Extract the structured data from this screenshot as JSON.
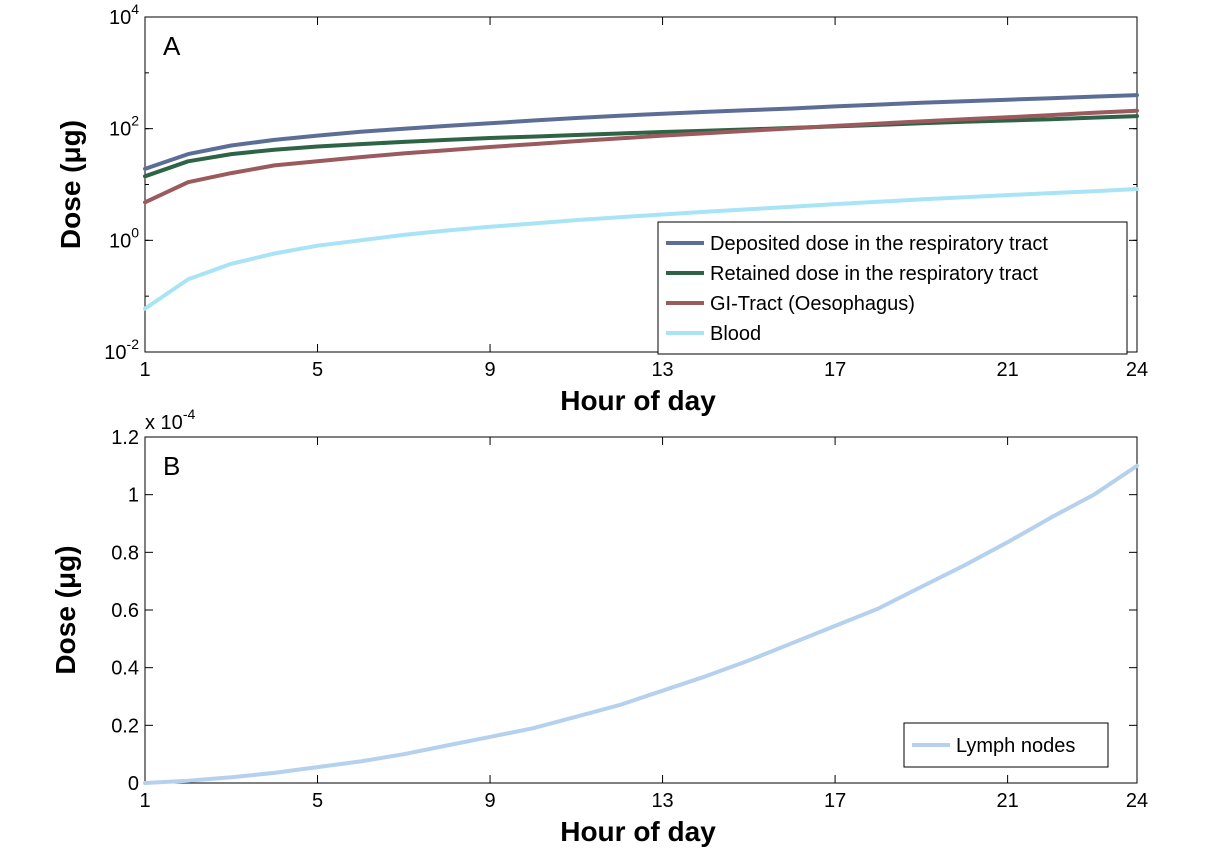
{
  "chart_data": [
    {
      "type": "line",
      "panel_label": "A",
      "xlabel": "Hour of day",
      "ylabel": "Dose (μg)",
      "yscale": "log",
      "xlim": [
        1,
        24
      ],
      "ylim": [
        0.01,
        10000
      ],
      "x_ticks": [
        1,
        5,
        9,
        13,
        17,
        21,
        24
      ],
      "y_ticks": [
        {
          "value": 0.01,
          "base": "10",
          "exp": "-2"
        },
        {
          "value": 1,
          "base": "10",
          "exp": "0"
        },
        {
          "value": 100,
          "base": "10",
          "exp": "2"
        },
        {
          "value": 10000,
          "base": "10",
          "exp": "4"
        }
      ],
      "grid": false,
      "legend_position": "bottom-right",
      "x": [
        1,
        2,
        3,
        4,
        5,
        6,
        7,
        8,
        9,
        10,
        11,
        12,
        13,
        14,
        15,
        16,
        17,
        18,
        19,
        20,
        21,
        22,
        23,
        24
      ],
      "series": [
        {
          "name": "Deposited dose in the respiratory tract",
          "color": "#5d6e96",
          "values": [
            19,
            35,
            50,
            63,
            75,
            88,
            100,
            112,
            125,
            140,
            155,
            170,
            185,
            200,
            215,
            230,
            250,
            270,
            290,
            310,
            330,
            350,
            375,
            400
          ]
        },
        {
          "name": "Retained dose in the respiratory tract",
          "color": "#2f6346",
          "values": [
            14,
            26,
            35,
            42,
            48,
            53,
            58,
            63,
            68,
            72,
            77,
            82,
            87,
            92,
            97,
            103,
            110,
            117,
            125,
            133,
            140,
            148,
            158,
            168
          ]
        },
        {
          "name": "GI-Tract (Oesophagus)",
          "color": "#9a5a5e",
          "values": [
            4.8,
            11,
            16,
            22,
            26,
            31,
            36,
            41,
            47,
            53,
            60,
            67,
            75,
            83,
            92,
            101,
            112,
            123,
            135,
            147,
            160,
            175,
            192,
            210
          ]
        },
        {
          "name": "Blood",
          "color": "#a8e4f5",
          "values": [
            0.06,
            0.2,
            0.38,
            0.58,
            0.8,
            1.0,
            1.25,
            1.5,
            1.75,
            2.0,
            2.3,
            2.6,
            2.9,
            3.25,
            3.6,
            4.0,
            4.45,
            4.9,
            5.4,
            5.9,
            6.45,
            7.0,
            7.6,
            8.3
          ]
        }
      ]
    },
    {
      "type": "line",
      "panel_label": "B",
      "xlabel": "Hour of day",
      "ylabel": "Dose (μg)",
      "multiplier_label": "x 10",
      "multiplier_exp": "-4",
      "xlim": [
        1,
        24
      ],
      "ylim": [
        0,
        1.2
      ],
      "x_ticks": [
        1,
        5,
        9,
        13,
        17,
        21,
        24
      ],
      "y_ticks": [
        "0",
        "0.2",
        "0.4",
        "0.6",
        "0.8",
        "1",
        "1.2"
      ],
      "grid": false,
      "legend_position": "bottom-right",
      "x": [
        1,
        2,
        3,
        4,
        5,
        6,
        7,
        8,
        9,
        10,
        11,
        12,
        13,
        14,
        15,
        16,
        17,
        18,
        19,
        20,
        21,
        22,
        23,
        24
      ],
      "series": [
        {
          "name": "Lymph nodes",
          "color": "#b5d1ee",
          "values": [
            0,
            0.008,
            0.02,
            0.035,
            0.055,
            0.075,
            0.1,
            0.13,
            0.16,
            0.19,
            0.23,
            0.27,
            0.32,
            0.37,
            0.425,
            0.485,
            0.545,
            0.605,
            0.68,
            0.755,
            0.835,
            0.92,
            1.0,
            1.1
          ]
        }
      ]
    }
  ]
}
